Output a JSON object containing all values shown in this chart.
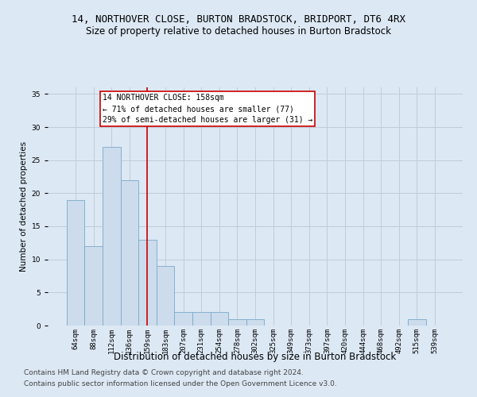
{
  "title": "14, NORTHOVER CLOSE, BURTON BRADSTOCK, BRIDPORT, DT6 4RX",
  "subtitle": "Size of property relative to detached houses in Burton Bradstock",
  "xlabel": "Distribution of detached houses by size in Burton Bradstock",
  "ylabel": "Number of detached properties",
  "bar_labels": [
    "64sqm",
    "88sqm",
    "112sqm",
    "136sqm",
    "159sqm",
    "183sqm",
    "207sqm",
    "231sqm",
    "254sqm",
    "278sqm",
    "302sqm",
    "325sqm",
    "349sqm",
    "373sqm",
    "397sqm",
    "420sqm",
    "444sqm",
    "468sqm",
    "492sqm",
    "515sqm",
    "539sqm"
  ],
  "bar_values": [
    19,
    12,
    27,
    22,
    13,
    9,
    2,
    2,
    2,
    1,
    1,
    0,
    0,
    0,
    0,
    0,
    0,
    0,
    0,
    1,
    0
  ],
  "bar_color": "#ccdcec",
  "bar_edge_color": "#7aaac8",
  "property_line_index": 4,
  "annotation_line1": "14 NORTHOVER CLOSE: 158sqm",
  "annotation_line2": "← 71% of detached houses are smaller (77)",
  "annotation_line3": "29% of semi-detached houses are larger (31) →",
  "annotation_box_color": "#ffffff",
  "annotation_border_color": "#cc0000",
  "redline_color": "#cc0000",
  "grid_color": "#c0ccd8",
  "background_color": "#dce8f4",
  "plot_bg_color": "#dce8f4",
  "ylim": [
    0,
    36
  ],
  "yticks": [
    0,
    5,
    10,
    15,
    20,
    25,
    30,
    35
  ],
  "title_fontsize": 9,
  "subtitle_fontsize": 8.5,
  "tick_fontsize": 6.5,
  "ylabel_fontsize": 7.5,
  "xlabel_fontsize": 8.5,
  "annotation_fontsize": 7,
  "footer_fontsize": 6.5,
  "footer_line1": "Contains HM Land Registry data © Crown copyright and database right 2024.",
  "footer_line2": "Contains public sector information licensed under the Open Government Licence v3.0."
}
